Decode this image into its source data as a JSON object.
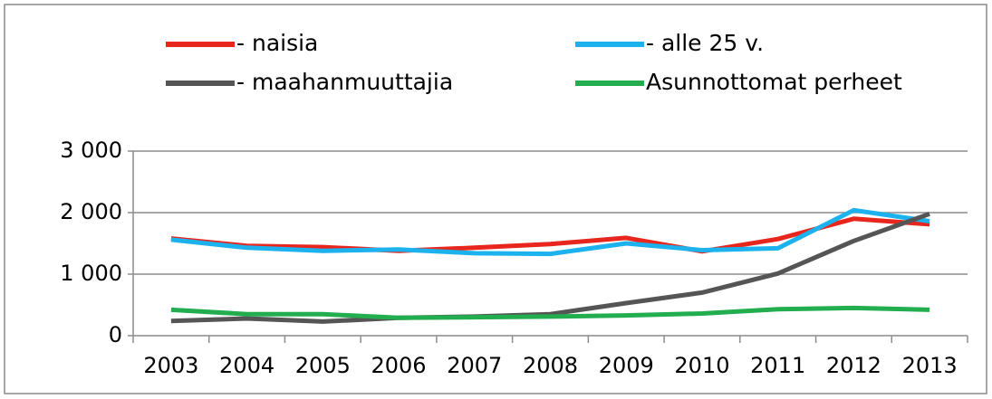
{
  "chart_data": {
    "type": "line",
    "categories": [
      "2003",
      "2004",
      "2005",
      "2006",
      "2007",
      "2008",
      "2009",
      "2010",
      "2011",
      "2012",
      "2013"
    ],
    "series": [
      {
        "name": "- naisia",
        "color": "#e8261d",
        "values": [
          1580,
          1460,
          1440,
          1380,
          1430,
          1490,
          1590,
          1370,
          1570,
          1900,
          1810
        ]
      },
      {
        "name": "- alle 25 v.",
        "color": "#1cb2ee",
        "values": [
          1560,
          1430,
          1380,
          1400,
          1340,
          1330,
          1500,
          1390,
          1420,
          2040,
          1860
        ]
      },
      {
        "name": "- maahanmuuttajia",
        "color": "#555555",
        "values": [
          240,
          280,
          230,
          290,
          310,
          350,
          530,
          700,
          1010,
          1540,
          1980
        ]
      },
      {
        "name": "Asunnottomat perheet",
        "color": "#22ad4f",
        "values": [
          420,
          350,
          350,
          290,
          300,
          310,
          330,
          360,
          430,
          450,
          420
        ]
      }
    ],
    "ylim": [
      0,
      3000
    ],
    "yticks": [
      0,
      {
        "value": 1000,
        "label": "1 000"
      },
      {
        "value": 2000,
        "label": "2 000"
      },
      {
        "value": 3000,
        "label": "3 000"
      }
    ],
    "grid": true
  }
}
